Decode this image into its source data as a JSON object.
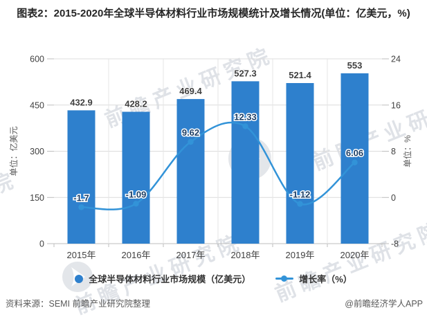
{
  "title": "图表2：2015-2020年全球半导体材料行业市场规模统计及增长情况(单位：亿美元，%)",
  "chart_data": {
    "type": "bar+line combo",
    "categories": [
      "2015年",
      "2016年",
      "2017年",
      "2018年",
      "2019年",
      "2020年"
    ],
    "series": [
      {
        "name": "全球半导体材料行业市场规模（亿美元）",
        "type": "bar",
        "axis": "left",
        "values": [
          432.9,
          428.2,
          469.4,
          527.3,
          521.4,
          553
        ]
      },
      {
        "name": "增长率（%）",
        "type": "line",
        "axis": "right",
        "values": [
          -1.7,
          -1.09,
          9.62,
          12.33,
          -1.12,
          6.06
        ]
      }
    ],
    "left_axis": {
      "title": "单位：亿美元",
      "min": 0,
      "max": 600,
      "ticks": [
        0,
        150,
        300,
        450,
        600
      ]
    },
    "right_axis": {
      "title": "单位：%",
      "min": -8,
      "max": 24,
      "ticks": [
        -8,
        0,
        8,
        16,
        24
      ]
    },
    "grid": "horizontal and vertical light gray gridlines",
    "legend_position": "bottom"
  },
  "legend": {
    "items": [
      {
        "label": "全球半导体材料行业市场规模（亿美元）",
        "marker": "circle"
      },
      {
        "label": "增长率（%）",
        "marker": "line-dot"
      }
    ]
  },
  "footer": {
    "source": "资料来源：SEMI 前瞻产业研究院整理",
    "credit": "@前瞻经济学人APP"
  },
  "watermark": {
    "text": "前瞻产业研究院"
  },
  "colors": {
    "bar": "#2e80cd",
    "line": "#3293d8",
    "bar_label": "#3f3f3f",
    "line_label": "#1d3f66",
    "grid": "#dcdcdc",
    "grid_vertical": "#e6e6e6",
    "axis": "#bdbdbd",
    "tick_text": "#404040",
    "muted_text": "#595959",
    "watermark": "#c6ccd5"
  }
}
